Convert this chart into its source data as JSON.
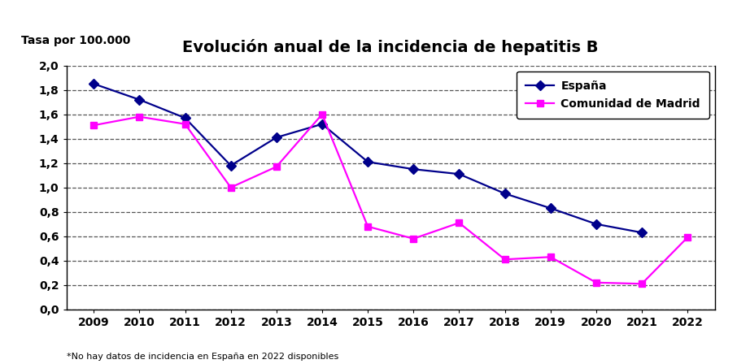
{
  "title": "Evolución anual de la incidencia de hepatitis B",
  "ylabel": "Tasa por 100.000",
  "footnote": "*No hay datos de incidencia en España en 2022 disponibles",
  "years": [
    2009,
    2010,
    2011,
    2012,
    2013,
    2014,
    2015,
    2016,
    2017,
    2018,
    2019,
    2020,
    2021,
    2022
  ],
  "espana": [
    1.85,
    1.72,
    1.57,
    1.18,
    1.41,
    1.52,
    1.21,
    1.15,
    1.11,
    0.95,
    0.83,
    0.7,
    0.63,
    null
  ],
  "madrid": [
    1.51,
    1.58,
    1.52,
    1.0,
    1.17,
    1.6,
    0.68,
    0.58,
    0.71,
    0.41,
    0.43,
    0.22,
    0.21,
    0.59
  ],
  "espana_color": "#00008B",
  "madrid_color": "#FF00FF",
  "ylim": [
    0.0,
    2.0
  ],
  "yticks": [
    0.0,
    0.2,
    0.4,
    0.6,
    0.8,
    1.0,
    1.2,
    1.4,
    1.6,
    1.8,
    2.0
  ],
  "legend_labels": [
    "España",
    "Comunidad de Madrid"
  ],
  "background_color": "#FFFFFF",
  "grid_color": "#555555",
  "title_fontsize": 14,
  "tick_fontsize": 10,
  "ylabel_fontsize": 10,
  "footnote_fontsize": 8
}
